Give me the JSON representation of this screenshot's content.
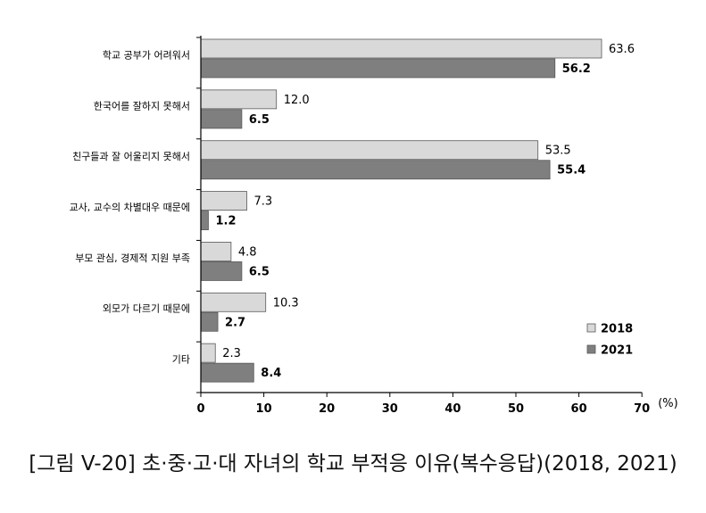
{
  "caption": "[그림 V-20] 초·중·고·대 자녀의 학교 부적응 이유(복수응답)(2018, 2021)",
  "chart_data": {
    "type": "bar",
    "orientation": "horizontal",
    "categories": [
      "학교 공부가 어려워서",
      "한국어를 잘하지 못해서",
      "친구들과 잘 어울리지 못해서",
      "교사, 교수의 차별대우 때문에",
      "부모 관심, 경제적 지원 부족",
      "외모가 다르기 때문에",
      "기타"
    ],
    "series": [
      {
        "name": "2018",
        "values": [
          63.6,
          12.0,
          53.5,
          7.3,
          4.8,
          10.3,
          2.3
        ],
        "labels": [
          "63.6",
          "12.0",
          "53.5",
          "7.3",
          "4.8",
          "10.3",
          "2.3"
        ],
        "color": "#d9d9d9"
      },
      {
        "name": "2021",
        "values": [
          56.2,
          6.5,
          55.4,
          1.2,
          6.5,
          2.7,
          8.4
        ],
        "labels": [
          "56.2",
          "6.5",
          "55.4",
          "1.2",
          "6.5",
          "2.7",
          "8.4"
        ],
        "color": "#7f7f7f"
      }
    ],
    "xlim": [
      0,
      70
    ],
    "xticks": [
      0,
      10,
      20,
      30,
      40,
      50,
      60,
      70
    ],
    "xunit": "(%)",
    "legend": "right",
    "grid": false
  }
}
